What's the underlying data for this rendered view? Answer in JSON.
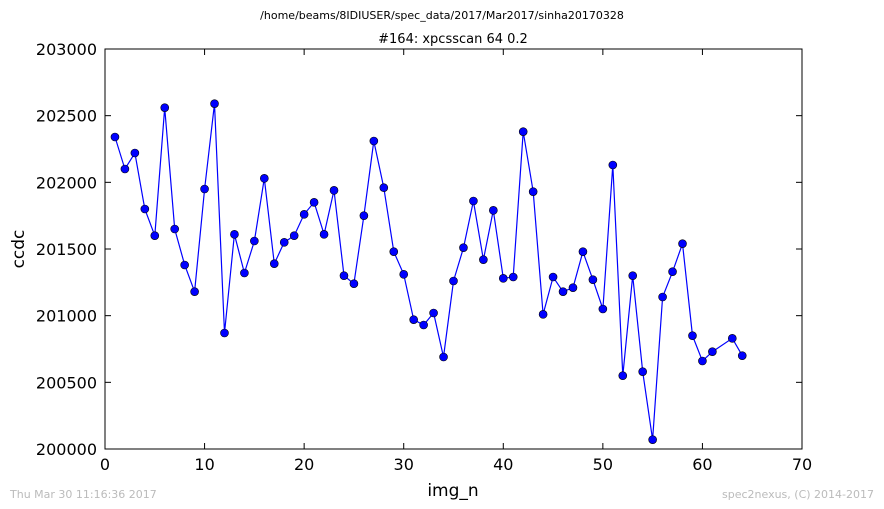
{
  "page": {
    "path_title": "/home/beams/8IDIUSER/spec_data/2017/Mar2017/sinha20170328",
    "timestamp": "Thu Mar 30 11:16:36 2017",
    "credit": "spec2nexus, (C) 2014-2017"
  },
  "chart_data": {
    "type": "line",
    "title": "#164: xpcsscan 64 0.2",
    "xlabel": "img_n",
    "ylabel": "ccdc",
    "xlim": [
      0,
      70
    ],
    "ylim": [
      200000,
      203000
    ],
    "xticks": [
      0,
      10,
      20,
      30,
      40,
      50,
      60,
      70
    ],
    "yticks": [
      200000,
      200500,
      201000,
      201500,
      202000,
      202500,
      203000
    ],
    "grid": false,
    "line_color": "#0000ff",
    "marker_color": "#0000ff",
    "series": [
      {
        "x": [
          1,
          2,
          3,
          4,
          5,
          6,
          7,
          8,
          9,
          10,
          11,
          12,
          13,
          14,
          15,
          16,
          17,
          18,
          19,
          20,
          21,
          22,
          23,
          24,
          25,
          26,
          27,
          28,
          29,
          30,
          31,
          32,
          33,
          34,
          35,
          36,
          37,
          38,
          39,
          40,
          41,
          42,
          43,
          44,
          45,
          46,
          47,
          48,
          49,
          50,
          51,
          52,
          53,
          54,
          55,
          56,
          57,
          58,
          59,
          60,
          61,
          63,
          64
        ],
        "y": [
          202340,
          202100,
          202220,
          201800,
          201600,
          202560,
          201650,
          201380,
          201180,
          201950,
          202590,
          200870,
          201610,
          201320,
          201560,
          202030,
          201390,
          201550,
          201600,
          201760,
          201850,
          201610,
          201940,
          201300,
          201240,
          201750,
          202310,
          201960,
          201480,
          201310,
          200970,
          200930,
          201020,
          200690,
          201260,
          201510,
          201860,
          201420,
          201790,
          201280,
          201290,
          202380,
          201930,
          201010,
          201290,
          201180,
          201210,
          201480,
          201270,
          201050,
          202130,
          200550,
          201300,
          200580,
          200070,
          201140,
          201330,
          201540,
          200850,
          200660,
          200730,
          200830,
          200700
        ]
      }
    ]
  }
}
